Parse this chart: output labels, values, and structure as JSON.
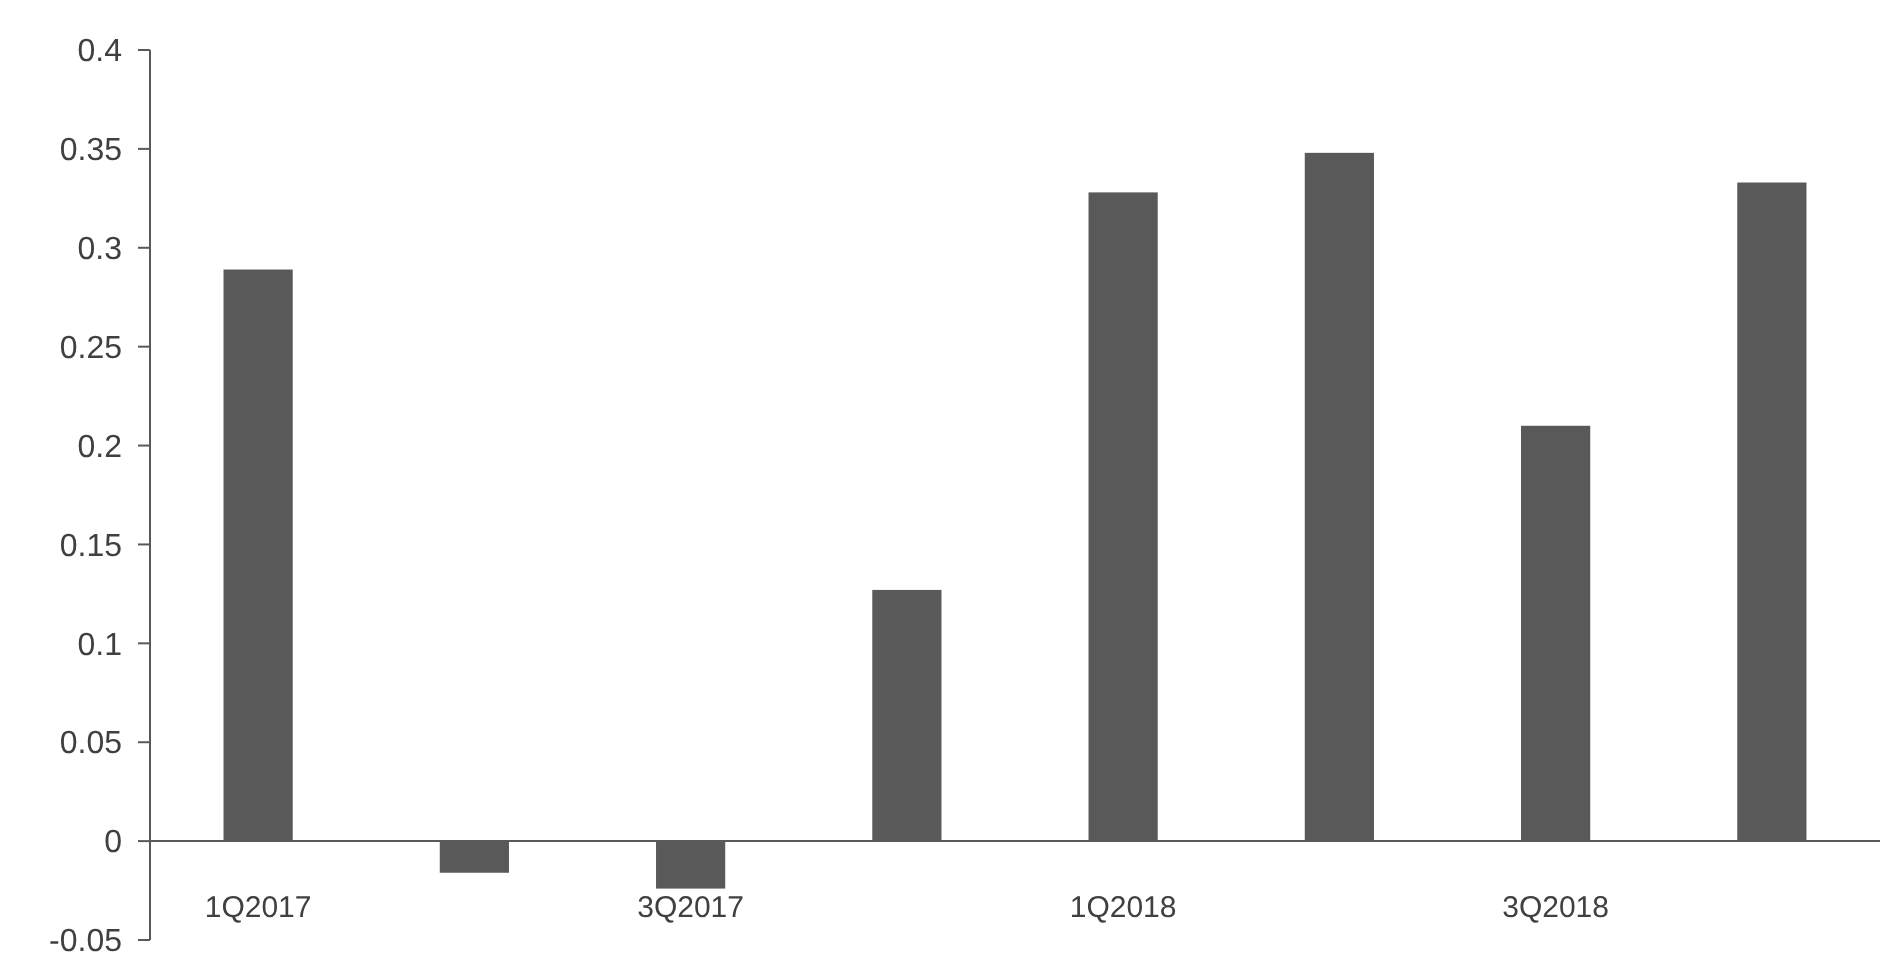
{
  "chart_data": {
    "type": "bar",
    "categories": [
      "1Q2017",
      null,
      "3Q2017",
      null,
      "1Q2018",
      null,
      "3Q2018",
      null
    ],
    "values": [
      0.289,
      -0.016,
      -0.024,
      0.127,
      0.328,
      0.348,
      0.21,
      0.333
    ],
    "color": "#595959",
    "ylim": [
      -0.05,
      0.4
    ],
    "yticks": [
      -0.05,
      0,
      0.05,
      0.1,
      0.15,
      0.2,
      0.25,
      0.3,
      0.35,
      0.4
    ],
    "grid": false
  }
}
